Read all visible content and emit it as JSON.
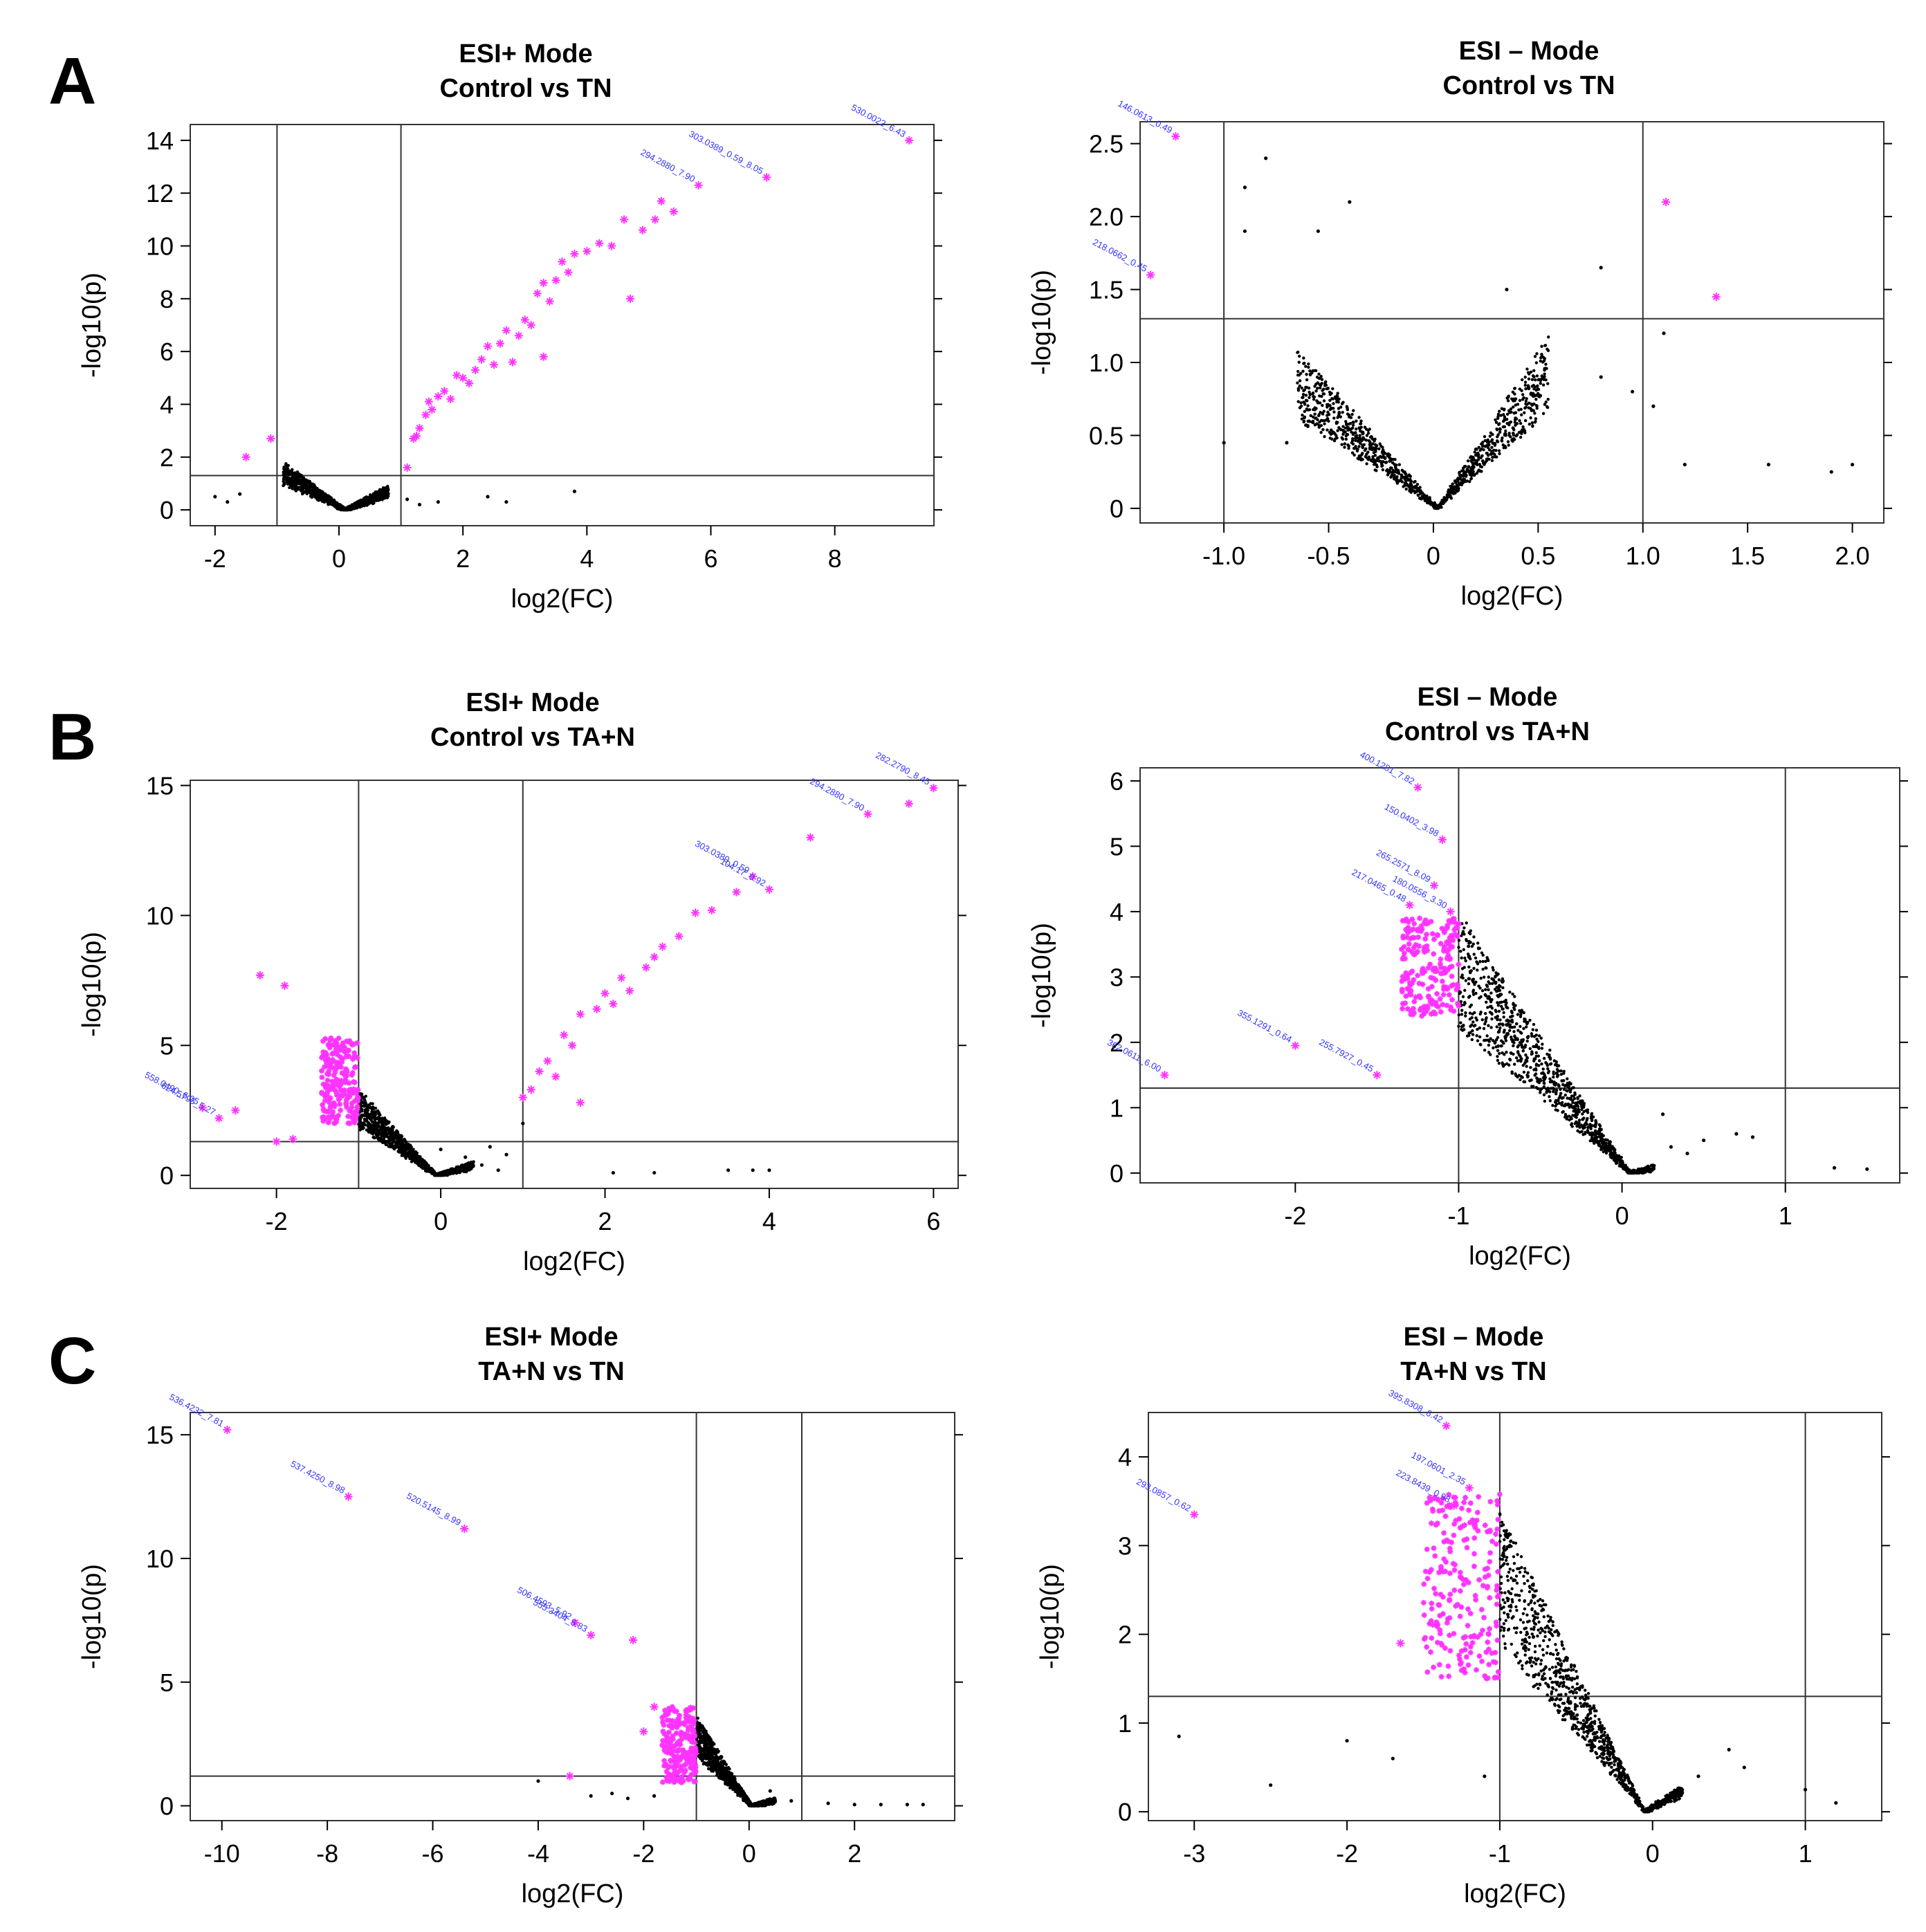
{
  "colors": {
    "significant": "#ff33ff",
    "nonsignificant": "#000000",
    "annotation": "#3333ff",
    "axes": "#000000"
  },
  "chart_data": [
    {
      "id": "A-pos",
      "panel": "A",
      "type": "scatter",
      "title": [
        "ESI+ Mode",
        "Control vs TN"
      ],
      "xlabel": "log2(FC)",
      "ylabel": "-log10(p)",
      "xlim": [
        -2.4,
        9.6
      ],
      "ylim": [
        -0.6,
        14.6
      ],
      "xticks": [
        -2,
        0,
        2,
        4,
        6,
        8
      ],
      "yticks": [
        0,
        2,
        4,
        6,
        8,
        10,
        12,
        14
      ],
      "vlines": [
        -1,
        1
      ],
      "hline": 1.3,
      "cloud": {
        "shape": "V",
        "x0": 0.1,
        "xmin": -0.9,
        "xmax": 0.8,
        "ymaxLeft": 1.8,
        "ymaxRight": 0.9
      },
      "significant_points": [
        [
          1.2,
          2.7
        ],
        [
          1.25,
          2.8
        ],
        [
          1.3,
          3.1
        ],
        [
          1.4,
          3.6
        ],
        [
          1.45,
          4.1
        ],
        [
          1.5,
          3.8
        ],
        [
          1.6,
          4.3
        ],
        [
          1.7,
          4.5
        ],
        [
          1.8,
          4.2
        ],
        [
          1.9,
          5.1
        ],
        [
          2.0,
          5.0
        ],
        [
          2.1,
          4.8
        ],
        [
          2.2,
          5.3
        ],
        [
          2.3,
          5.7
        ],
        [
          2.4,
          6.2
        ],
        [
          2.5,
          5.5
        ],
        [
          2.6,
          6.3
        ],
        [
          2.7,
          6.8
        ],
        [
          2.8,
          5.6
        ],
        [
          2.9,
          6.6
        ],
        [
          3.0,
          7.2
        ],
        [
          3.1,
          7.0
        ],
        [
          3.2,
          8.2
        ],
        [
          3.3,
          8.6
        ],
        [
          3.4,
          7.9
        ],
        [
          3.5,
          8.7
        ],
        [
          3.6,
          9.4
        ],
        [
          3.7,
          9.0
        ],
        [
          3.8,
          9.7
        ],
        [
          4.0,
          9.8
        ],
        [
          4.2,
          10.1
        ],
        [
          4.4,
          10.0
        ],
        [
          4.6,
          11.0
        ],
        [
          4.7,
          8.0
        ],
        [
          4.9,
          10.6
        ],
        [
          5.1,
          11.0
        ],
        [
          5.2,
          11.7
        ],
        [
          5.4,
          11.3
        ],
        [
          5.8,
          12.3
        ],
        [
          6.9,
          12.6
        ],
        [
          9.2,
          14.0
        ],
        [
          -1.5,
          2.0
        ],
        [
          -1.1,
          2.7
        ],
        [
          1.1,
          1.6
        ],
        [
          3.3,
          5.8
        ]
      ],
      "nonsig_points": [
        [
          -2.0,
          0.5
        ],
        [
          -1.8,
          0.3
        ],
        [
          -1.6,
          0.6
        ],
        [
          1.1,
          0.4
        ],
        [
          1.3,
          0.2
        ],
        [
          1.6,
          0.3
        ],
        [
          2.4,
          0.5
        ],
        [
          2.7,
          0.3
        ],
        [
          3.8,
          0.7
        ]
      ],
      "annotations": [
        {
          "x": 5.8,
          "y": 12.3,
          "text": "294.2880_7.90"
        },
        {
          "x": 6.9,
          "y": 12.6,
          "text": "303.0389_0.59_8.05"
        },
        {
          "x": 9.2,
          "y": 14.0,
          "text": "530.0022_6.43"
        }
      ]
    },
    {
      "id": "A-neg",
      "panel": "A",
      "type": "scatter",
      "title": [
        "ESI – Mode",
        "Control vs TN"
      ],
      "xlabel": "log2(FC)",
      "ylabel": "-log10(p)",
      "xlim": [
        -1.4,
        2.15
      ],
      "ylim": [
        -0.1,
        2.65
      ],
      "xticks": [
        -1.0,
        -0.5,
        0,
        0.5,
        1.0,
        1.5,
        2.0
      ],
      "xtick_labels": [
        "-1.0",
        "-0.5",
        "0",
        "0.5",
        "1.0",
        "1.5",
        "2.0"
      ],
      "yticks": [
        0,
        0.5,
        1.0,
        1.5,
        2.0,
        2.5
      ],
      "ytick_labels": [
        "0",
        "0.5",
        "1.0",
        "1.5",
        "2.0",
        "2.5"
      ],
      "vlines": [
        -1,
        1
      ],
      "hline": 1.3,
      "cloud": {
        "shape": "V",
        "x0": 0.02,
        "xmin": -0.65,
        "xmax": 0.55,
        "ymaxLeft": 1.1,
        "ymaxRight": 1.2
      },
      "significant_points": [
        [
          -1.23,
          2.55
        ],
        [
          -1.35,
          1.6
        ],
        [
          1.11,
          2.1
        ],
        [
          1.35,
          1.45
        ]
      ],
      "nonsig_points": [
        [
          -0.9,
          2.2
        ],
        [
          -0.8,
          2.4
        ],
        [
          -0.9,
          1.9
        ],
        [
          -0.55,
          1.9
        ],
        [
          -0.4,
          2.1
        ],
        [
          0.8,
          1.65
        ],
        [
          1.1,
          1.2
        ],
        [
          1.05,
          0.7
        ],
        [
          1.2,
          0.3
        ],
        [
          1.6,
          0.3
        ],
        [
          2.0,
          0.3
        ],
        [
          1.9,
          0.25
        ],
        [
          -1.0,
          0.45
        ],
        [
          -0.7,
          0.45
        ],
        [
          0.35,
          1.5
        ],
        [
          0.8,
          0.9
        ],
        [
          0.95,
          0.8
        ]
      ],
      "annotations": [
        {
          "x": -1.23,
          "y": 2.55,
          "text": "146.0613_0.49"
        },
        {
          "x": -1.35,
          "y": 1.6,
          "text": "218.0662_0.45"
        }
      ]
    },
    {
      "id": "B-pos",
      "panel": "B",
      "type": "scatter",
      "title": [
        "ESI+ Mode",
        "Control vs TA+N"
      ],
      "xlabel": "log2(FC)",
      "ylabel": "-log10(p)",
      "xlim": [
        -3.05,
        6.3
      ],
      "ylim": [
        -0.5,
        15.2
      ],
      "xticks": [
        -2,
        0,
        2,
        4,
        6
      ],
      "yticks": [
        0,
        5,
        10,
        15
      ],
      "vlines": [
        -1,
        1
      ],
      "hline": 1.3,
      "cloud": {
        "shape": "left",
        "x0": -0.05,
        "xmin": -1.0,
        "xmax": 0.4,
        "ymaxLeft": 3.3,
        "ymaxRight": 0.5
      },
      "magenta_cluster": {
        "xmin": -1.45,
        "xmax": -1.0,
        "ymin": 2.0,
        "ymax": 5.3
      },
      "significant_points": [
        [
          1.0,
          3.0
        ],
        [
          1.1,
          3.3
        ],
        [
          1.2,
          4.0
        ],
        [
          1.3,
          4.4
        ],
        [
          1.4,
          3.8
        ],
        [
          1.5,
          5.4
        ],
        [
          1.6,
          5.0
        ],
        [
          1.7,
          6.2
        ],
        [
          1.9,
          6.4
        ],
        [
          2.0,
          7.0
        ],
        [
          2.1,
          6.6
        ],
        [
          2.2,
          7.6
        ],
        [
          2.3,
          7.1
        ],
        [
          2.5,
          8.0
        ],
        [
          2.6,
          8.4
        ],
        [
          2.7,
          8.8
        ],
        [
          2.9,
          9.2
        ],
        [
          3.1,
          10.1
        ],
        [
          3.3,
          10.2
        ],
        [
          3.6,
          10.9
        ],
        [
          3.8,
          11.5
        ],
        [
          4.0,
          11.0
        ],
        [
          4.5,
          13.0
        ],
        [
          5.2,
          13.9
        ],
        [
          5.7,
          14.3
        ],
        [
          6.0,
          14.9
        ],
        [
          -2.5,
          2.5
        ],
        [
          -2.2,
          7.7
        ],
        [
          -1.9,
          7.3
        ],
        [
          -2.0,
          1.3
        ],
        [
          -1.8,
          1.4
        ],
        [
          -2.7,
          2.2
        ],
        [
          -2.9,
          2.6
        ],
        [
          1.7,
          2.8
        ]
      ],
      "nonsig_points": [
        [
          0.0,
          1.0
        ],
        [
          0.3,
          0.7
        ],
        [
          0.5,
          0.4
        ],
        [
          0.6,
          1.1
        ],
        [
          0.7,
          0.2
        ],
        [
          0.8,
          0.8
        ],
        [
          2.1,
          0.1
        ],
        [
          2.6,
          0.1
        ],
        [
          3.5,
          0.2
        ],
        [
          3.8,
          0.2
        ],
        [
          4.0,
          0.2
        ],
        [
          1.0,
          2.0
        ]
      ],
      "annotations": [
        {
          "x": 4.0,
          "y": 11.0,
          "text": "104.17_0.92"
        },
        {
          "x": 3.8,
          "y": 11.5,
          "text": "303.0389_0.59"
        },
        {
          "x": 5.2,
          "y": 13.9,
          "text": "294.2880_7.90"
        },
        {
          "x": 6.0,
          "y": 14.9,
          "text": "282.2790_8.45"
        },
        {
          "x": -2.7,
          "y": 2.2,
          "text": "624.5795_5.27"
        },
        {
          "x": -2.9,
          "y": 2.6,
          "text": "558.0490_6.05"
        }
      ]
    },
    {
      "id": "B-neg",
      "panel": "B",
      "type": "scatter",
      "title": [
        "ESI – Mode",
        "Control vs TA+N"
      ],
      "xlabel": "log2(FC)",
      "ylabel": "-log10(p)",
      "xlim": [
        -2.95,
        1.7
      ],
      "ylim": [
        -0.15,
        6.2
      ],
      "xticks": [
        -2,
        -1,
        0,
        1
      ],
      "yticks": [
        0,
        1,
        2,
        3,
        4,
        5,
        6
      ],
      "vlines": [
        -1,
        1
      ],
      "hline": 1.3,
      "cloud": {
        "shape": "left",
        "x0": 0.05,
        "xmin": -1.0,
        "xmax": 0.2,
        "ymaxLeft": 4.0,
        "ymaxRight": 0.1
      },
      "magenta_cluster": {
        "xmin": -1.35,
        "xmax": -1.0,
        "ymin": 2.4,
        "ymax": 3.9
      },
      "significant_points": [
        [
          -1.25,
          5.9
        ],
        [
          -1.1,
          5.1
        ],
        [
          -1.15,
          4.4
        ],
        [
          -1.05,
          4.0
        ],
        [
          -1.3,
          4.1
        ],
        [
          -2.0,
          1.95
        ],
        [
          -2.8,
          1.5
        ],
        [
          -1.5,
          1.5
        ]
      ],
      "nonsig_points": [
        [
          0.3,
          0.4
        ],
        [
          0.4,
          0.3
        ],
        [
          0.7,
          0.6
        ],
        [
          0.8,
          0.55
        ],
        [
          1.3,
          0.08
        ],
        [
          1.5,
          0.06
        ],
        [
          0.25,
          0.9
        ],
        [
          0.5,
          0.5
        ]
      ],
      "annotations": [
        {
          "x": -1.25,
          "y": 5.9,
          "text": "400.1281_7.82"
        },
        {
          "x": -1.1,
          "y": 5.1,
          "text": "150.0402_3.98"
        },
        {
          "x": -1.15,
          "y": 4.4,
          "text": "265.2571_8.09"
        },
        {
          "x": -1.05,
          "y": 4.0,
          "text": "180.0556_3.30"
        },
        {
          "x": -1.3,
          "y": 4.1,
          "text": "217.0465_0.48"
        },
        {
          "x": -2.0,
          "y": 1.95,
          "text": "355.1291_0.64"
        },
        {
          "x": -2.8,
          "y": 1.5,
          "text": "362.0611_6.00"
        },
        {
          "x": -1.5,
          "y": 1.5,
          "text": "255.7927_0.45"
        }
      ]
    },
    {
      "id": "C-pos",
      "panel": "C",
      "type": "scatter",
      "title": [
        "ESI+ Mode",
        "TA+N vs TN"
      ],
      "xlabel": "log2(FC)",
      "ylabel": "-log10(p)",
      "xlim": [
        -10.6,
        3.9
      ],
      "ylim": [
        -0.6,
        15.9
      ],
      "xticks": [
        -10,
        -8,
        -6,
        -4,
        -2,
        0,
        2
      ],
      "yticks": [
        0,
        5,
        10,
        15
      ],
      "vlines": [
        -1,
        1
      ],
      "hline": 1.2,
      "cloud": {
        "shape": "left",
        "x0": 0.05,
        "xmin": -1.0,
        "xmax": 0.5,
        "ymaxLeft": 3.6,
        "ymaxRight": 0.3
      },
      "magenta_cluster": {
        "xmin": -1.65,
        "xmax": -1.0,
        "ymin": 0.9,
        "ymax": 4.0
      },
      "significant_points": [
        [
          -9.9,
          15.2
        ],
        [
          -7.6,
          12.5
        ],
        [
          -5.4,
          11.2
        ],
        [
          -3.3,
          7.4
        ],
        [
          -3.0,
          6.9
        ],
        [
          -2.2,
          6.7
        ],
        [
          -1.8,
          4.0
        ],
        [
          -2.0,
          3.0
        ],
        [
          -3.4,
          1.2
        ]
      ],
      "nonsig_points": [
        [
          -4.0,
          1.0
        ],
        [
          -3.0,
          0.4
        ],
        [
          -2.6,
          0.5
        ],
        [
          -2.3,
          0.3
        ],
        [
          -1.8,
          0.4
        ],
        [
          0.4,
          0.6
        ],
        [
          1.5,
          0.1
        ],
        [
          2.0,
          0.05
        ],
        [
          2.5,
          0.05
        ],
        [
          3.0,
          0.05
        ],
        [
          3.3,
          0.05
        ],
        [
          0.8,
          0.2
        ]
      ],
      "annotations": [
        {
          "x": -9.9,
          "y": 15.2,
          "text": "536.4232_7.81"
        },
        {
          "x": -7.6,
          "y": 12.5,
          "text": "537.4250_8.98"
        },
        {
          "x": -5.4,
          "y": 11.2,
          "text": "520.5145_8.99"
        },
        {
          "x": -3.3,
          "y": 7.4,
          "text": "506.4593_5.92"
        },
        {
          "x": -3.0,
          "y": 6.9,
          "text": "555.3404_5.83"
        }
      ]
    },
    {
      "id": "C-neg",
      "panel": "C",
      "type": "scatter",
      "title": [
        "ESI – Mode",
        "TA+N vs TN"
      ],
      "xlabel": "log2(FC)",
      "ylabel": "-log10(p)",
      "xlim": [
        -3.3,
        1.5
      ],
      "ylim": [
        -0.1,
        4.5
      ],
      "xticks": [
        -3,
        -2,
        -1,
        0,
        1
      ],
      "yticks": [
        0,
        1,
        2,
        3,
        4
      ],
      "vlines": [
        -1,
        1
      ],
      "hline": 1.3,
      "cloud": {
        "shape": "left",
        "x0": -0.05,
        "xmin": -1.0,
        "xmax": 0.2,
        "ymaxLeft": 3.4,
        "ymaxRight": 0.3
      },
      "magenta_cluster": {
        "xmin": -1.5,
        "xmax": -1.0,
        "ymin": 1.5,
        "ymax": 3.6
      },
      "significant_points": [
        [
          -1.35,
          4.35
        ],
        [
          -1.2,
          3.65
        ],
        [
          -1.3,
          3.45
        ],
        [
          -3.0,
          3.35
        ],
        [
          -1.65,
          1.9
        ]
      ],
      "nonsig_points": [
        [
          -3.1,
          0.85
        ],
        [
          -2.0,
          0.8
        ],
        [
          -1.7,
          0.6
        ],
        [
          -1.1,
          0.4
        ],
        [
          0.5,
          0.7
        ],
        [
          0.6,
          0.5
        ],
        [
          1.0,
          0.25
        ],
        [
          1.2,
          0.1
        ],
        [
          0.3,
          0.4
        ],
        [
          -2.5,
          0.3
        ]
      ],
      "annotations": [
        {
          "x": -1.35,
          "y": 4.35,
          "text": "395.8308_6.42"
        },
        {
          "x": -1.2,
          "y": 3.65,
          "text": "197.0601_2.35"
        },
        {
          "x": -1.3,
          "y": 3.45,
          "text": "223.8439_0.98"
        },
        {
          "x": -3.0,
          "y": 3.35,
          "text": "293.0857_0.62"
        }
      ]
    }
  ]
}
